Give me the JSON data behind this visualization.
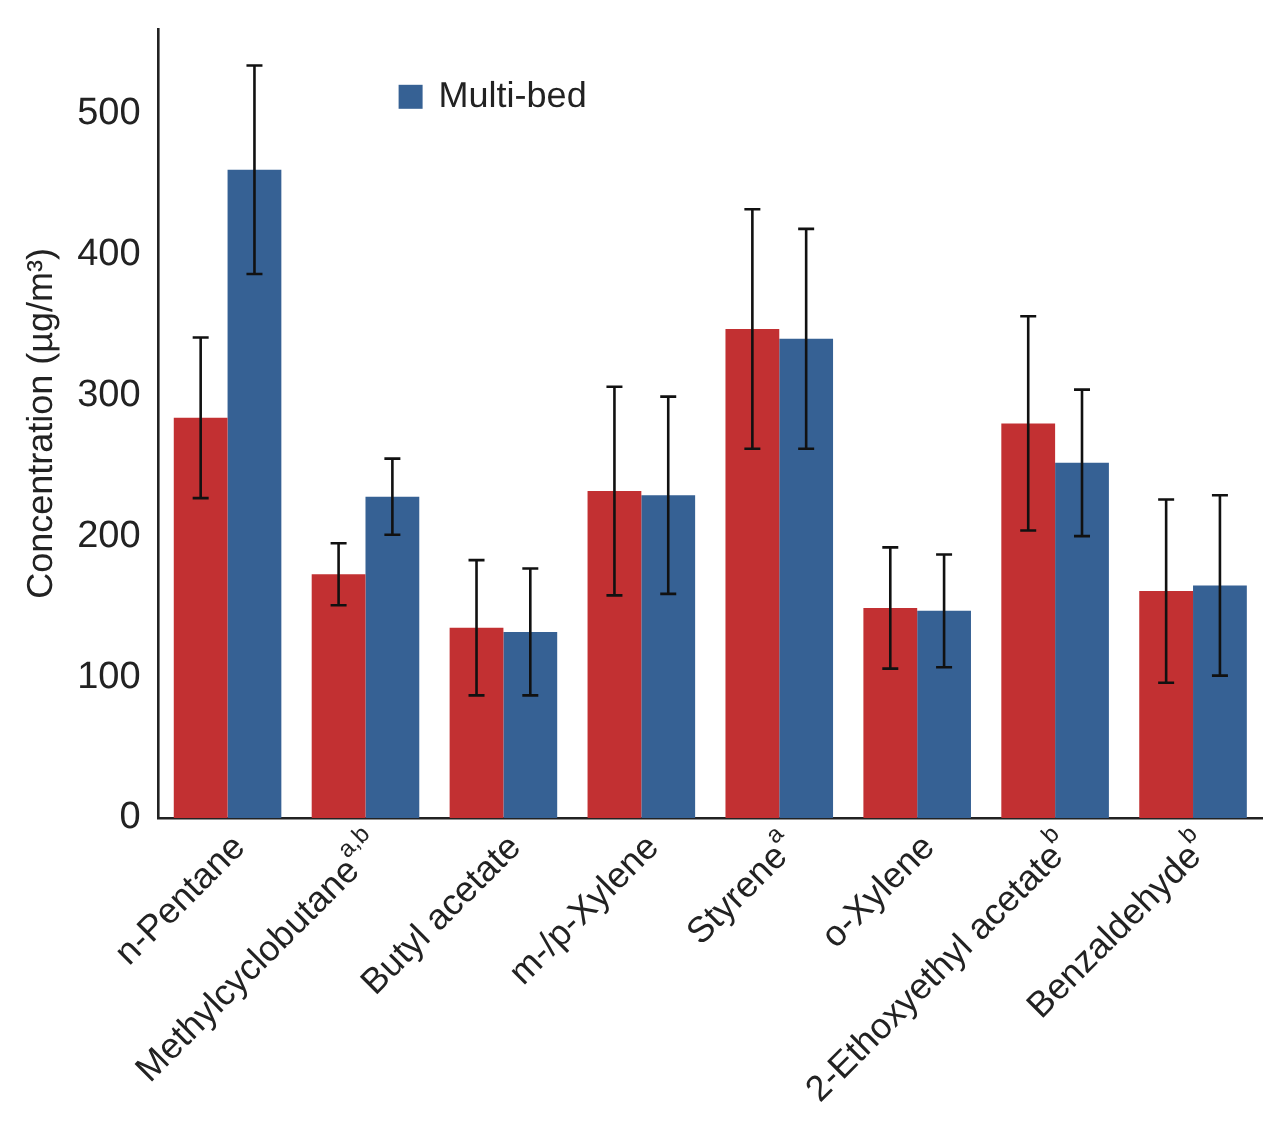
{
  "chart_data": {
    "type": "bar",
    "ylabel": "Concentration (µg/m³)",
    "categories": [
      "n-Pentane",
      "Methylcyclobutane$^{a,b}$",
      "Butyl acetate",
      "m-/p-Xylene",
      "Styrene$^{a}$",
      "o-Xylene",
      "2-Ethoxyethyl acetate$^{b}$",
      "Benzaldehyde$^{b}$"
    ],
    "series": [
      {
        "color": "#c23032",
        "values": [
          284,
          173,
          135,
          232,
          347,
          149,
          280,
          161
        ],
        "errors": [
          57,
          22,
          48,
          74,
          85,
          43,
          76,
          65
        ]
      },
      {
        "name": "Multi-bed",
        "color": "#366194",
        "values": [
          460,
          228,
          132,
          229,
          340,
          147,
          252,
          165
        ],
        "errors": [
          74,
          27,
          45,
          70,
          78,
          40,
          52,
          64
        ]
      }
    ],
    "ylim": [
      0,
      560
    ],
    "yticks": [
      0,
      100,
      200,
      300,
      400,
      500
    ],
    "grid": false,
    "legend": "top left"
  }
}
